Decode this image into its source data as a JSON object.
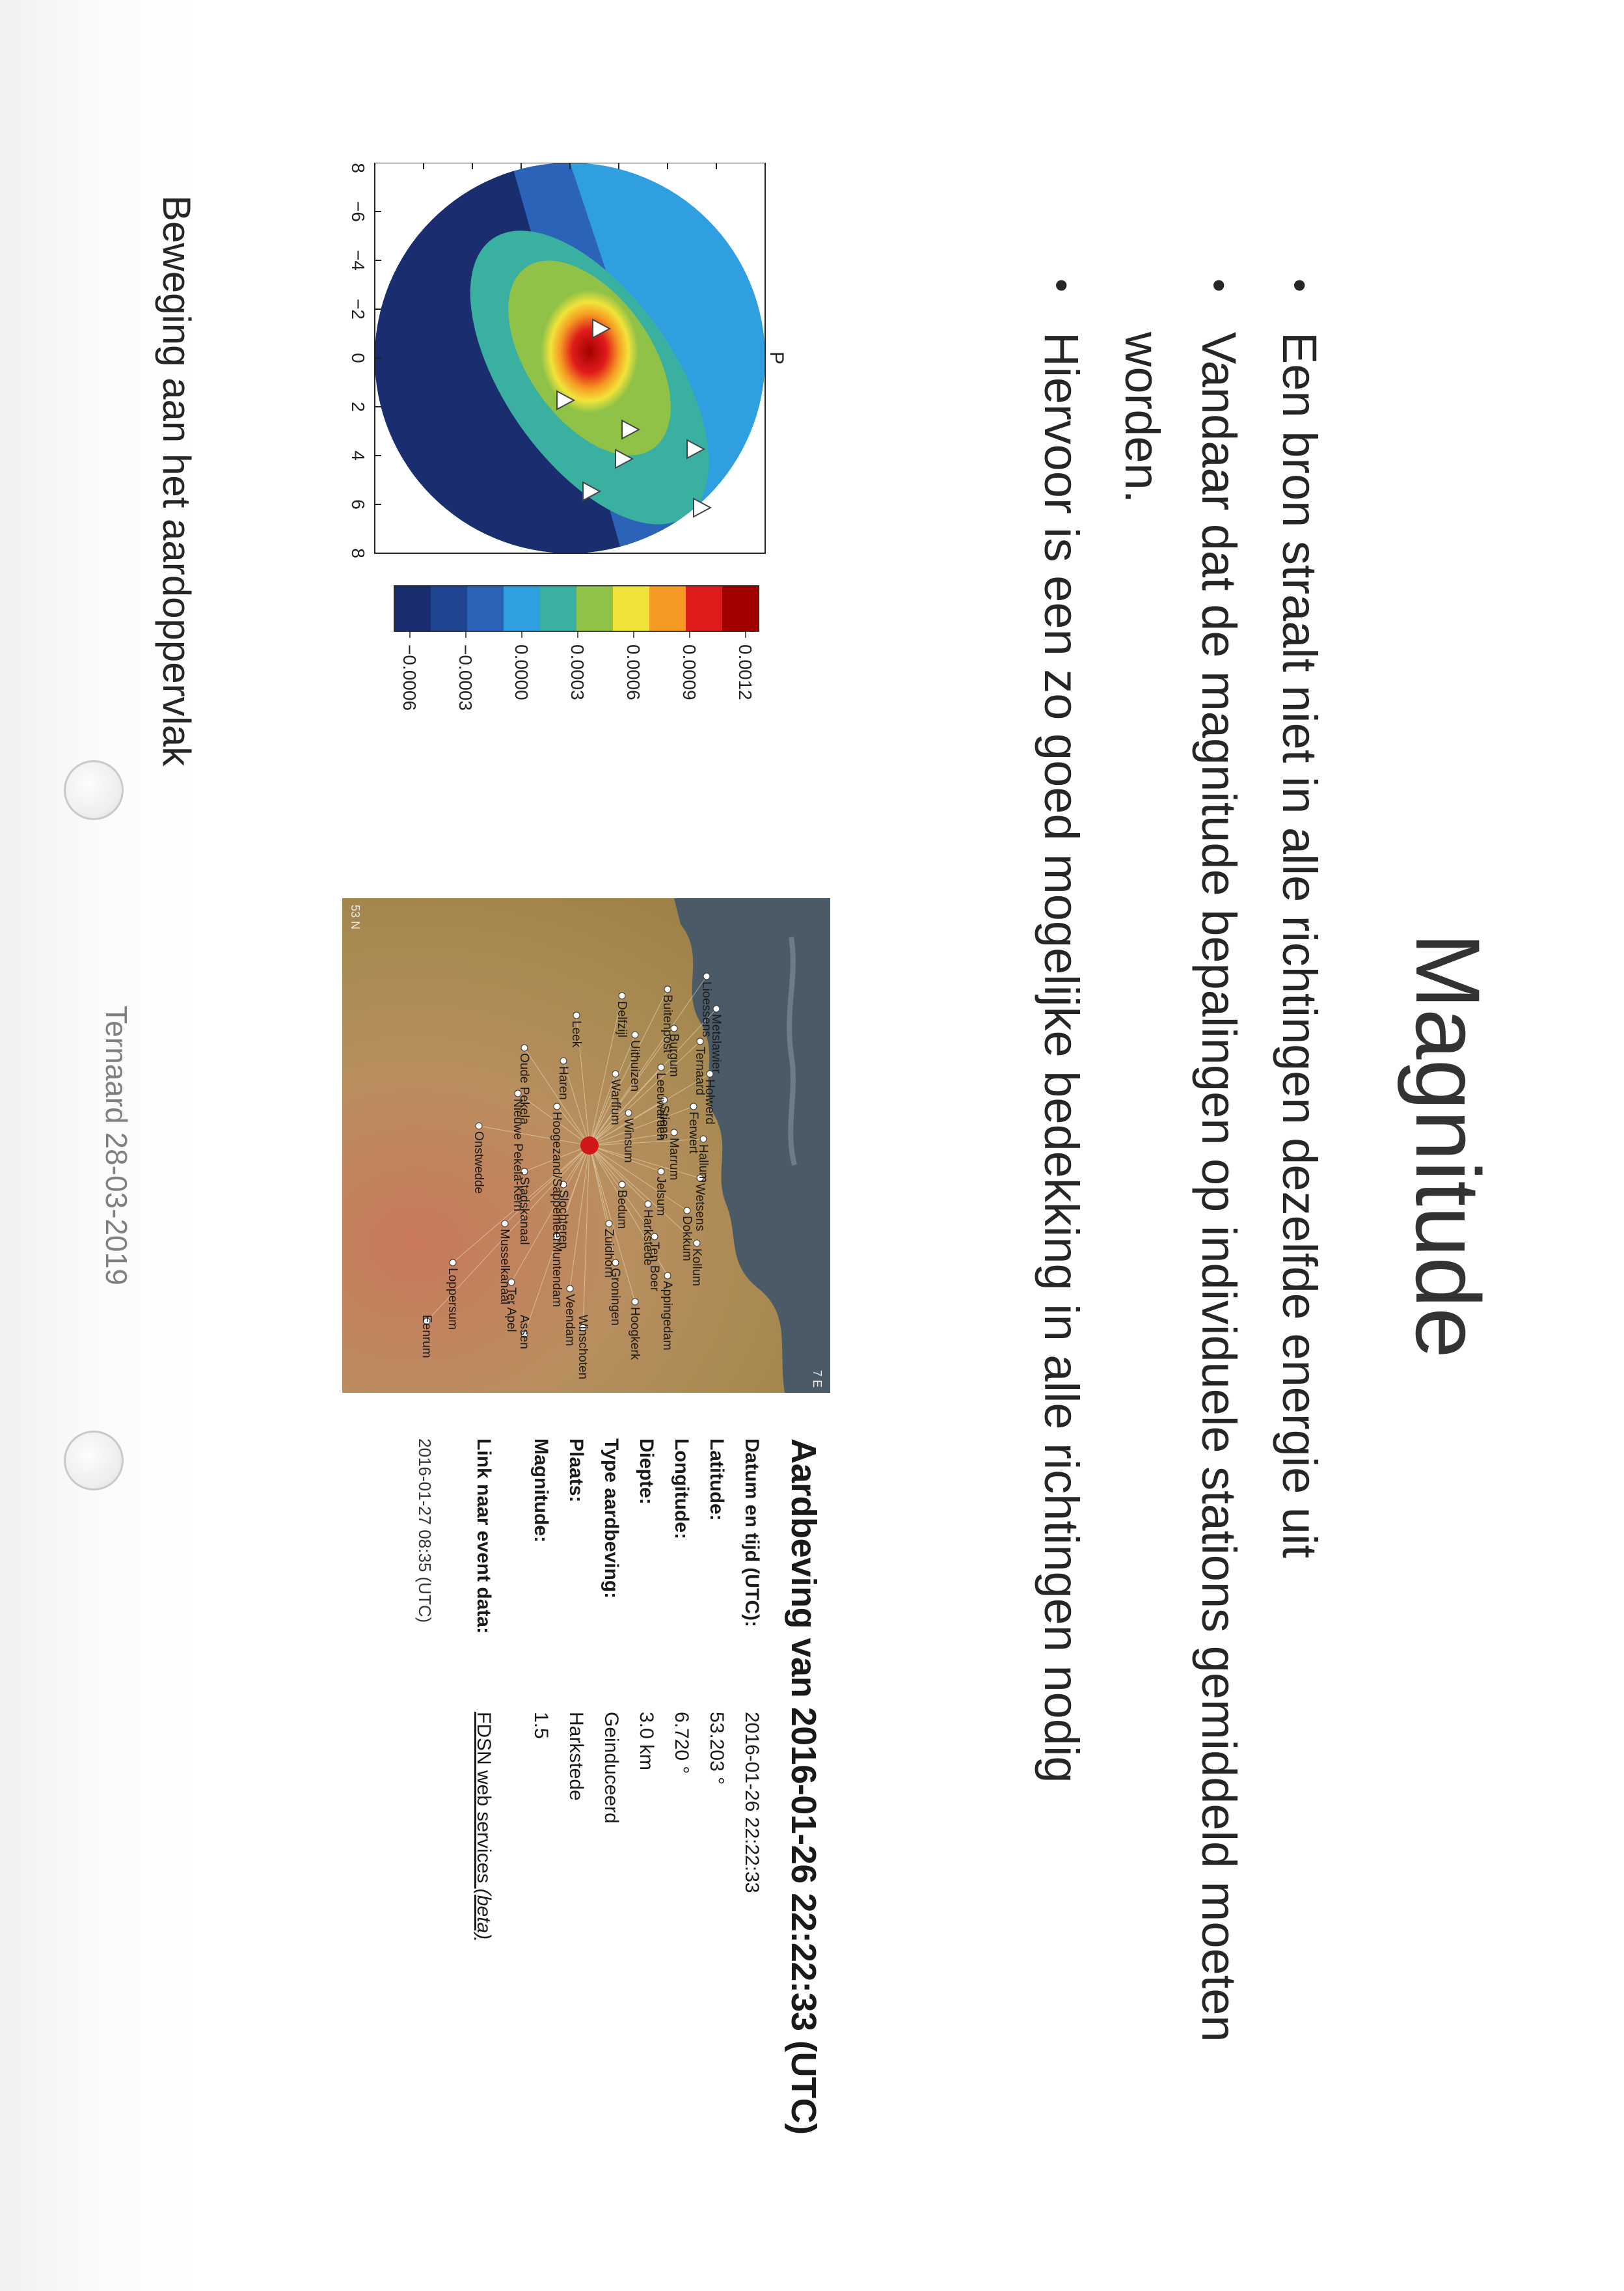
{
  "slide": {
    "title": "Magnitude",
    "bullets": [
      "Een bron straalt niet in alle richtingen dezelfde energie uit",
      "Vandaar dat de magnitude bepalingen op individuele stations gemiddeld moeten worden.",
      "Hiervoor is een zo goed mogelijke bedekking in alle richtingen nodig"
    ],
    "bullet_glyph": "•",
    "footer": "Ternaard 28-03-2019"
  },
  "heatmap": {
    "panel_label": "P",
    "x_ticks": [
      "−8",
      "−6",
      "−4",
      "−2",
      "0",
      "2",
      "4",
      "6",
      "8"
    ],
    "y_ticks": [
      "8",
      "6",
      "4",
      "2",
      "0",
      "−2",
      "−4",
      "−6",
      "−8"
    ],
    "colorbar_ticks": [
      "0.0012",
      "0.0009",
      "0.0006",
      "0.0003",
      "0.0000",
      "−0.0003",
      "−0.0006"
    ],
    "caption": "Beweging aan het aardoppervlak",
    "colors": {
      "high": "#b00000",
      "mid": "#f2e33a",
      "low": "#1a2d6e",
      "zero": "#2f9fe0"
    }
  },
  "map": {
    "coord_north": "53 N",
    "coord_east": "7 E",
    "places": [
      "Lioessens",
      "Metslawier",
      "Ternaard",
      "Holwerd",
      "Ferwert",
      "Hallum",
      "Wetsens",
      "Dokkum",
      "Kollum",
      "Buitenpost",
      "Burgum",
      "Leeuwarden",
      "Stiens",
      "Marrum",
      "Jelsum",
      "Harkstede",
      "Ten Boer",
      "Appingedam",
      "Delfzijl",
      "Uithuizen",
      "Warffum",
      "Winsum",
      "Bedum",
      "Zuidhorn",
      "Groningen",
      "Hoogkerk",
      "Leek",
      "Haren",
      "Hoogezand/Sappemeer",
      "Slochteren",
      "Muntendam",
      "Veendam",
      "Winschoten",
      "Oude Pekela",
      "Nieuwe Pekela-Kern",
      "Stadskanaal",
      "Musselkanaal",
      "Ter Apel",
      "Assen",
      "Onstwedde",
      "Loppersum",
      "Eenrum"
    ]
  },
  "event": {
    "title": "Aardbeving van 2016-01-26 22:22:33 (UTC)",
    "rows": [
      {
        "key": "Datum en tijd (UTC):",
        "value": "2016-01-26 22:22:33"
      },
      {
        "key": "Latitude:",
        "value": "53.203 °"
      },
      {
        "key": "Longitude:",
        "value": "6.720 °"
      },
      {
        "key": "Diepte:",
        "value": "3.0 km"
      },
      {
        "key": "Type aardbeving:",
        "value": "Geinduceerd"
      },
      {
        "key": "Plaats:",
        "value": "Harkstede"
      },
      {
        "key": "Magnitude:",
        "value": "1.5"
      }
    ],
    "link_key": "Link naar event data:",
    "link_text": "FDSN web services",
    "link_suffix": "(beta)",
    "updated": "2016-01-27 08:35 (UTC)"
  }
}
